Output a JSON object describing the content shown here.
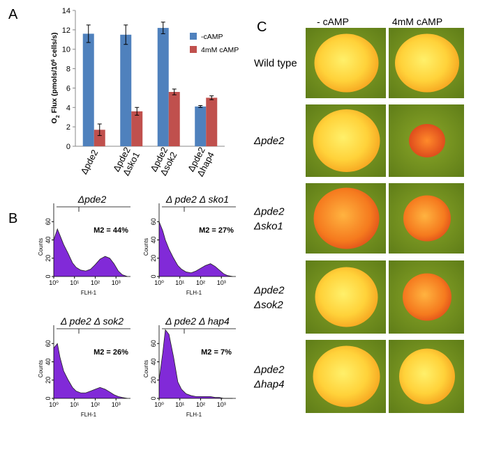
{
  "panel_labels": [
    "A",
    "B",
    "C"
  ],
  "chart_data": [
    {
      "type": "bar",
      "ylabel_parts": [
        "O",
        "2",
        " Flux (pmols/10",
        "6",
        " cells/s)"
      ],
      "categories": [
        "Δpde2",
        "Δpde2 Δsko1",
        "Δpde2 Δsok2",
        "Δpde2 Δhap4"
      ],
      "series": [
        {
          "name": "-cAMP",
          "color": "#4f81bd",
          "values": [
            11.6,
            11.5,
            12.2,
            4.1
          ],
          "errors": [
            0.9,
            1.0,
            0.6,
            0.1
          ]
        },
        {
          "name": "4mM cAMP",
          "color": "#c0504d",
          "values": [
            1.7,
            3.6,
            5.6,
            5.0
          ],
          "errors": [
            0.6,
            0.4,
            0.3,
            0.2
          ]
        }
      ],
      "ylim": [
        0,
        14
      ],
      "yticks": [
        0,
        2,
        4,
        6,
        8,
        10,
        12,
        14
      ]
    },
    {
      "type": "area",
      "title": "Δpde2",
      "annotation": "M2 = 44%",
      "xlabel": "FLH-1",
      "ylabel": "Counts",
      "log_x": true,
      "color": "#7a1fd6",
      "x": [
        1,
        1.5,
        2,
        3,
        5,
        8,
        12,
        20,
        35,
        60,
        100,
        170,
        300,
        500,
        800,
        1300,
        2000,
        3500
      ],
      "values": [
        40,
        52,
        45,
        35,
        25,
        15,
        10,
        7,
        6,
        8,
        13,
        19,
        22,
        20,
        14,
        6,
        2,
        0
      ],
      "xlim": [
        1,
        5000
      ],
      "xticks": [
        {
          "value": 1,
          "label": "10⁰"
        },
        {
          "value": 10,
          "label": "10¹"
        },
        {
          "value": 100,
          "label": "10²"
        },
        {
          "value": 1000,
          "label": "10³"
        }
      ],
      "ylim": [
        0,
        80
      ],
      "yticks": [
        0,
        20,
        40,
        60
      ]
    },
    {
      "type": "area",
      "title": "Δ pde2 Δ sko1",
      "annotation": "M2 = 27%",
      "xlabel": "FLH-1",
      "ylabel": "Counts",
      "log_x": true,
      "color": "#7a1fd6",
      "x": [
        1,
        1.5,
        2,
        3,
        5,
        8,
        12,
        20,
        35,
        60,
        100,
        170,
        300,
        500,
        800,
        1300,
        2000,
        3500
      ],
      "values": [
        60,
        50,
        40,
        30,
        20,
        12,
        8,
        5,
        4,
        6,
        9,
        12,
        14,
        11,
        7,
        3,
        1,
        0
      ],
      "xlim": [
        1,
        5000
      ],
      "xticks": [
        {
          "value": 1,
          "label": "10⁰"
        },
        {
          "value": 10,
          "label": "10¹"
        },
        {
          "value": 100,
          "label": "10²"
        },
        {
          "value": 1000,
          "label": "10³"
        }
      ],
      "ylim": [
        0,
        80
      ],
      "yticks": [
        0,
        20,
        40,
        60
      ]
    },
    {
      "type": "area",
      "title": "Δ pde2 Δ sok2",
      "annotation": "M2 = 26%",
      "xlabel": "FLH-1",
      "ylabel": "Counts",
      "log_x": true,
      "color": "#7a1fd6",
      "x": [
        1,
        1.5,
        2,
        3,
        5,
        8,
        12,
        20,
        35,
        60,
        100,
        170,
        300,
        500,
        800,
        1300,
        2000,
        3500
      ],
      "values": [
        55,
        60,
        45,
        30,
        20,
        12,
        8,
        6,
        6,
        8,
        10,
        12,
        10,
        7,
        4,
        2,
        1,
        0
      ],
      "xlim": [
        1,
        5000
      ],
      "xticks": [
        {
          "value": 1,
          "label": "10⁰"
        },
        {
          "value": 10,
          "label": "10¹"
        },
        {
          "value": 100,
          "label": "10²"
        },
        {
          "value": 1000,
          "label": "10³"
        }
      ],
      "ylim": [
        0,
        80
      ],
      "yticks": [
        0,
        20,
        40,
        60
      ]
    },
    {
      "type": "area",
      "title": "Δ pde2 Δ hap4",
      "annotation": "M2 = 7%",
      "xlabel": "FLH-1",
      "ylabel": "Counts",
      "log_x": true,
      "color": "#7a1fd6",
      "x": [
        1,
        1.5,
        2,
        3,
        5,
        8,
        12,
        20,
        35,
        60,
        100,
        170,
        300,
        500,
        800,
        1300,
        2000,
        3500
      ],
      "values": [
        20,
        50,
        75,
        70,
        45,
        18,
        10,
        5,
        3,
        2,
        2,
        2,
        2,
        1,
        1,
        0,
        0,
        0
      ],
      "xlim": [
        1,
        5000
      ],
      "xticks": [
        {
          "value": 1,
          "label": "10⁰"
        },
        {
          "value": 10,
          "label": "10¹"
        },
        {
          "value": 100,
          "label": "10²"
        },
        {
          "value": 1000,
          "label": "10³"
        }
      ],
      "ylim": [
        0,
        80
      ],
      "yticks": [
        0,
        20,
        40,
        60
      ]
    }
  ],
  "colony_panel": {
    "columns": [
      "- cAMP",
      "4mM cAMP"
    ],
    "rows": [
      [
        "Wild type"
      ],
      [
        "Δpde2"
      ],
      [
        "Δpde2",
        "Δsko1"
      ],
      [
        "Δpde2",
        "Δsok2"
      ],
      [
        "Δpde2",
        "Δhap4"
      ]
    ]
  }
}
